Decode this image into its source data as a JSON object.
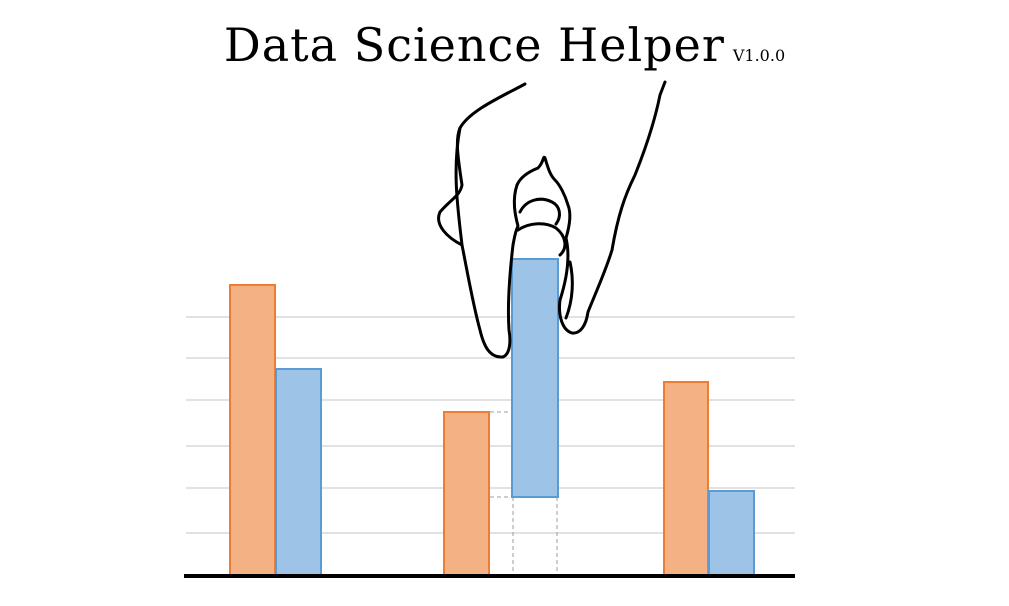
{
  "header": {
    "title": "Data Science Helper",
    "version": "V1.0.0"
  },
  "logo": {
    "icon": "hand-lifting-bar-chart-icon",
    "colors": {
      "orange_fill": "#f4b183",
      "orange_stroke": "#ed7d31",
      "blue_fill": "#9dc3e6",
      "blue_stroke": "#5b9bd5",
      "grid": "#d9d9d9",
      "axis": "#000000",
      "hand_outline": "#000000"
    }
  }
}
